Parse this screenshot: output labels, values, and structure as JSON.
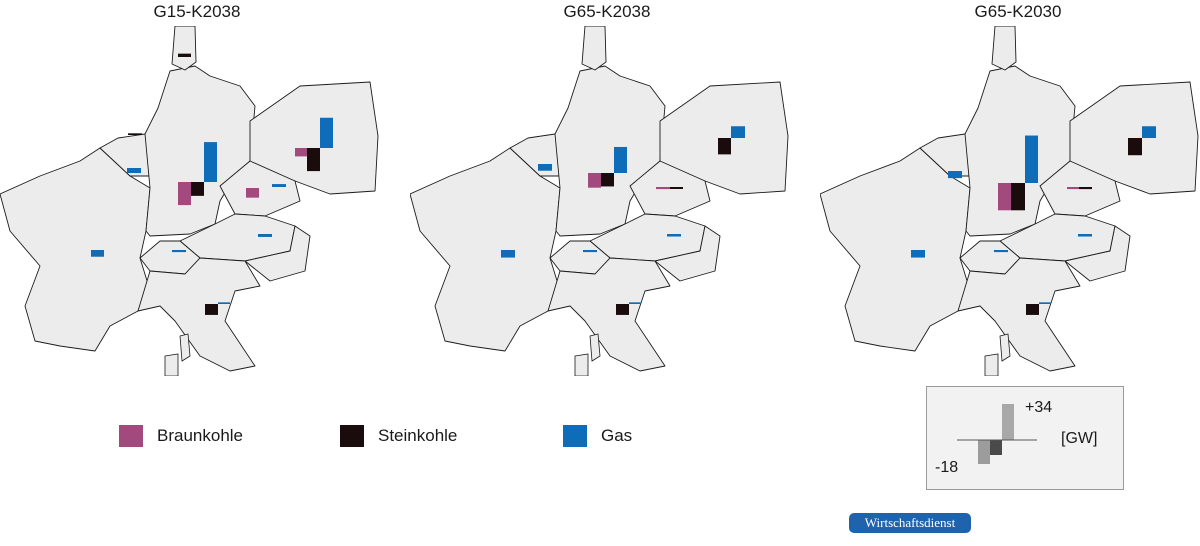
{
  "maps": [
    {
      "title": "G15-K2038",
      "bars": [
        {
          "type": "braunkohle",
          "x": 178,
          "gw": -5.5,
          "w": 13
        },
        {
          "type": "steinkohle",
          "x": 191,
          "gw": -3.3,
          "w": 13
        },
        {
          "type": "gas",
          "x": 204,
          "gw": 9.5,
          "w": 13
        },
        {
          "type": "braunkohle",
          "x": 295,
          "gw": -2.0,
          "w": 12
        },
        {
          "type": "steinkohle",
          "x": 307,
          "gw": -5.5,
          "w": 13
        },
        {
          "type": "gas",
          "x": 320,
          "gw": 7.2,
          "w": 13
        },
        {
          "type": "braunkohle",
          "x": 246,
          "gw": -2.3,
          "w": 13
        },
        {
          "type": "gas",
          "x": 272,
          "gw": 0.7,
          "w": 14
        },
        {
          "type": "gas",
          "x": 127,
          "gw": -1.2,
          "w": 14
        },
        {
          "type": "steinkohle",
          "x": 128,
          "gw": 0.4,
          "w": 14,
          "base": 135
        },
        {
          "type": "steinkohle",
          "x": 178,
          "gw": 0.8,
          "w": 13,
          "base": 57
        },
        {
          "type": "gas",
          "x": 91,
          "gw": -1.6,
          "w": 13,
          "base": 250
        },
        {
          "type": "gas",
          "x": 172,
          "gw": -0.5,
          "w": 14,
          "base": 250
        },
        {
          "type": "gas",
          "x": 258,
          "gw": -0.7,
          "w": 14,
          "base": 234
        },
        {
          "type": "steinkohle",
          "x": 205,
          "gw": -2.6,
          "w": 13,
          "base": 304
        },
        {
          "type": "gas",
          "x": 218,
          "gw": 0.4,
          "w": 12,
          "base": 304
        }
      ]
    },
    {
      "title": "G65-K2038",
      "bars": [
        {
          "type": "braunkohle",
          "x": 588,
          "gw": -3.5,
          "w": 13
        },
        {
          "type": "steinkohle",
          "x": 601,
          "gw": -3.2,
          "w": 13
        },
        {
          "type": "gas",
          "x": 614,
          "gw": 6.2,
          "w": 13
        },
        {
          "type": "steinkohle",
          "x": 718,
          "gw": -3.9,
          "w": 13,
          "base": 138
        },
        {
          "type": "gas",
          "x": 731,
          "gw": 2.8,
          "w": 14,
          "base": 138
        },
        {
          "type": "braunkohle",
          "x": 656,
          "gw": -0.5,
          "w": 14,
          "base": 187
        },
        {
          "type": "steinkohle",
          "x": 670,
          "gw": -0.3,
          "w": 13,
          "base": 187
        },
        {
          "type": "gas",
          "x": 538,
          "gw": -1.6,
          "w": 14,
          "base": 164
        },
        {
          "type": "gas",
          "x": 501,
          "gw": -1.8,
          "w": 14,
          "base": 250
        },
        {
          "type": "gas",
          "x": 583,
          "gw": -0.5,
          "w": 14,
          "base": 250
        },
        {
          "type": "gas",
          "x": 667,
          "gw": -0.6,
          "w": 14,
          "base": 234
        },
        {
          "type": "steinkohle",
          "x": 616,
          "gw": -2.6,
          "w": 13,
          "base": 304
        },
        {
          "type": "gas",
          "x": 629,
          "gw": 0.4,
          "w": 12,
          "base": 304
        }
      ]
    },
    {
      "title": "G65-K2030",
      "bars": [
        {
          "type": "braunkohle",
          "x": 998,
          "gw": -6.5,
          "w": 13
        },
        {
          "type": "steinkohle",
          "x": 1011,
          "gw": -6.5,
          "w": 14
        },
        {
          "type": "gas",
          "x": 1025,
          "gw": 11.3,
          "w": 13
        },
        {
          "type": "steinkohle",
          "x": 1128,
          "gw": -4.1,
          "w": 14,
          "base": 138
        },
        {
          "type": "gas",
          "x": 1142,
          "gw": 2.8,
          "w": 14,
          "base": 138
        },
        {
          "type": "braunkohle",
          "x": 1067,
          "gw": -0.5,
          "w": 12,
          "base": 187
        },
        {
          "type": "steinkohle",
          "x": 1079,
          "gw": -0.5,
          "w": 13,
          "base": 187
        },
        {
          "type": "gas",
          "x": 948,
          "gw": -1.7,
          "w": 14,
          "base": 171
        },
        {
          "type": "gas",
          "x": 911,
          "gw": -1.8,
          "w": 14,
          "base": 250
        },
        {
          "type": "gas",
          "x": 994,
          "gw": -0.5,
          "w": 14,
          "base": 250
        },
        {
          "type": "gas",
          "x": 1078,
          "gw": -0.6,
          "w": 14,
          "base": 234
        },
        {
          "type": "steinkohle",
          "x": 1026,
          "gw": -2.6,
          "w": 13,
          "base": 304
        },
        {
          "type": "gas",
          "x": 1039,
          "gw": 0.4,
          "w": 12,
          "base": 304
        }
      ]
    }
  ],
  "legend": [
    {
      "label": "Braunkohle",
      "color": "#a24a7e"
    },
    {
      "label": "Steinkohle",
      "color": "#1a0b0c"
    },
    {
      "label": "Gas",
      "color": "#0f6cb8"
    }
  ],
  "colors": {
    "braunkohle": "#a24a7e",
    "steinkohle": "#1a0b0c",
    "gas": "#0f6cb8"
  },
  "scale": {
    "max_label": "+34",
    "min_label": "-18",
    "unit": "[GW]",
    "max_gw": 34,
    "min_gw": -18
  },
  "badge": "Wirtschaftsdienst"
}
